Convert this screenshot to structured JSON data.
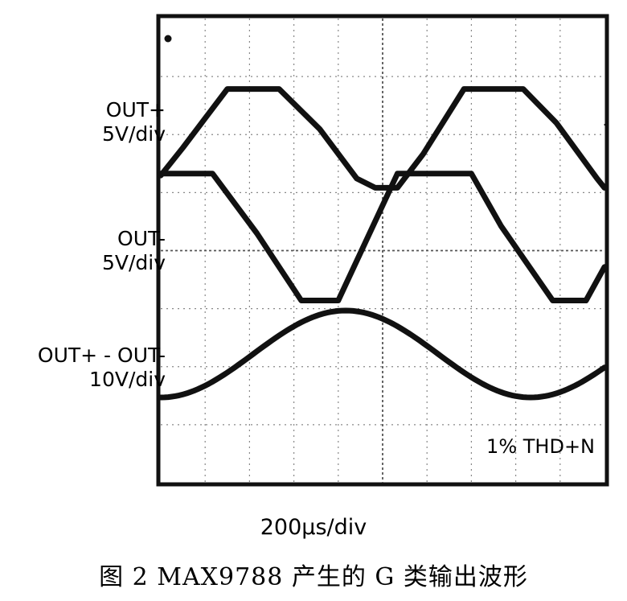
{
  "chart_data": {
    "type": "line",
    "title": "",
    "xlabel": "200µs/div",
    "annotation": "1% THD+N",
    "grid": true,
    "divisions": {
      "x": 10,
      "y": 8
    },
    "traces": [
      {
        "label_lines": [
          "OUT+",
          "5V/div"
        ],
        "points": [
          [
            0,
            -0.15
          ],
          [
            0.3,
            0.3
          ],
          [
            0.9,
            1.25
          ],
          [
            1.6,
            1.25
          ],
          [
            2.15,
            0.6
          ],
          [
            2.65,
            -0.2
          ],
          [
            2.9,
            -0.35
          ],
          [
            3.2,
            -0.35
          ],
          [
            3.55,
            0.2
          ],
          [
            4.1,
            1.25
          ],
          [
            4.9,
            1.25
          ],
          [
            5.35,
            0.7
          ],
          [
            5.9,
            -0.2
          ],
          [
            6.0,
            -0.35
          ]
        ]
      },
      {
        "label_lines": [
          "OUT-",
          "5V/div"
        ],
        "points": [
          [
            0,
            1.25
          ],
          [
            0.7,
            1.25
          ],
          [
            1.3,
            0.45
          ],
          [
            1.9,
            -0.45
          ],
          [
            2.4,
            -0.45
          ],
          [
            3.2,
            1.25
          ],
          [
            4.2,
            1.25
          ],
          [
            4.6,
            0.55
          ],
          [
            5.3,
            -0.45
          ],
          [
            5.75,
            -0.45
          ],
          [
            6.0,
            0.0
          ]
        ]
      },
      {
        "label_lines": [
          "OUT+ - OUT-",
          "10V/div"
        ],
        "points": "sine",
        "amplitude": 1.0,
        "period": 5.0,
        "peak_at": 2.5
      }
    ]
  },
  "caption": "图 2   MAX9788 产生的 G 类输出波形"
}
